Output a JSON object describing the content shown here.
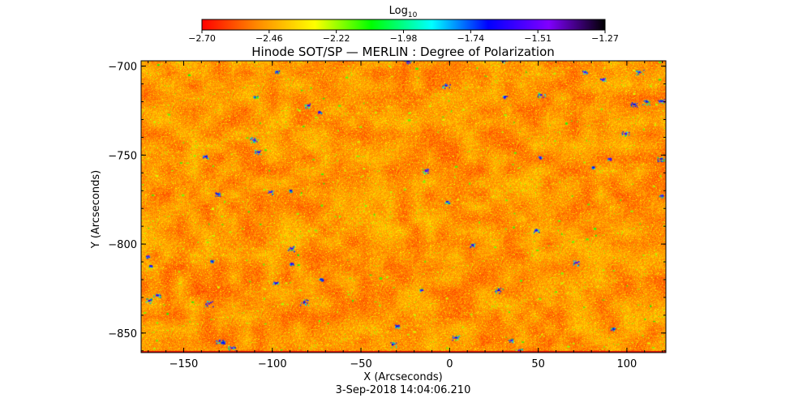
{
  "chart_data": {
    "type": "heatmap",
    "title": "Hinode SOT/SP — MERLIN : Degree of Polarization",
    "xlabel": "X (Arcseconds)",
    "ylabel": "Y (Arcseconds)",
    "xlim": [
      -174,
      122
    ],
    "ylim": [
      -861,
      -697
    ],
    "xticks": [
      -150,
      -100,
      -50,
      0,
      50,
      100
    ],
    "xtick_labels": [
      "−150",
      "−100",
      "−50",
      "0",
      "50",
      "100"
    ],
    "yticks": [
      -700,
      -750,
      -800,
      -850
    ],
    "ytick_labels": [
      "−700",
      "−750",
      "−800",
      "−850"
    ],
    "timestamp": "3-Sep-2018 14:04:06.210",
    "colorbar": {
      "label_main": "Log",
      "label_sub": "10",
      "range": [
        -2.7,
        -1.27
      ],
      "tick_labels": [
        "−2.70",
        "−2.46",
        "−2.22",
        "−1.98",
        "−1.74",
        "−1.51",
        "−1.27"
      ],
      "colors": [
        "#ff0000",
        "#ff8c00",
        "#ffff00",
        "#00ff00",
        "#00ffff",
        "#0000ff",
        "#8000ff",
        "#000000"
      ]
    },
    "field": {
      "description": "noisy field, mostly values near -2.6 (orange), with scattered patches up to about -2.2 (yellow-green) and sparse compact features near -1.7 to -1.5 (blue)"
    }
  }
}
